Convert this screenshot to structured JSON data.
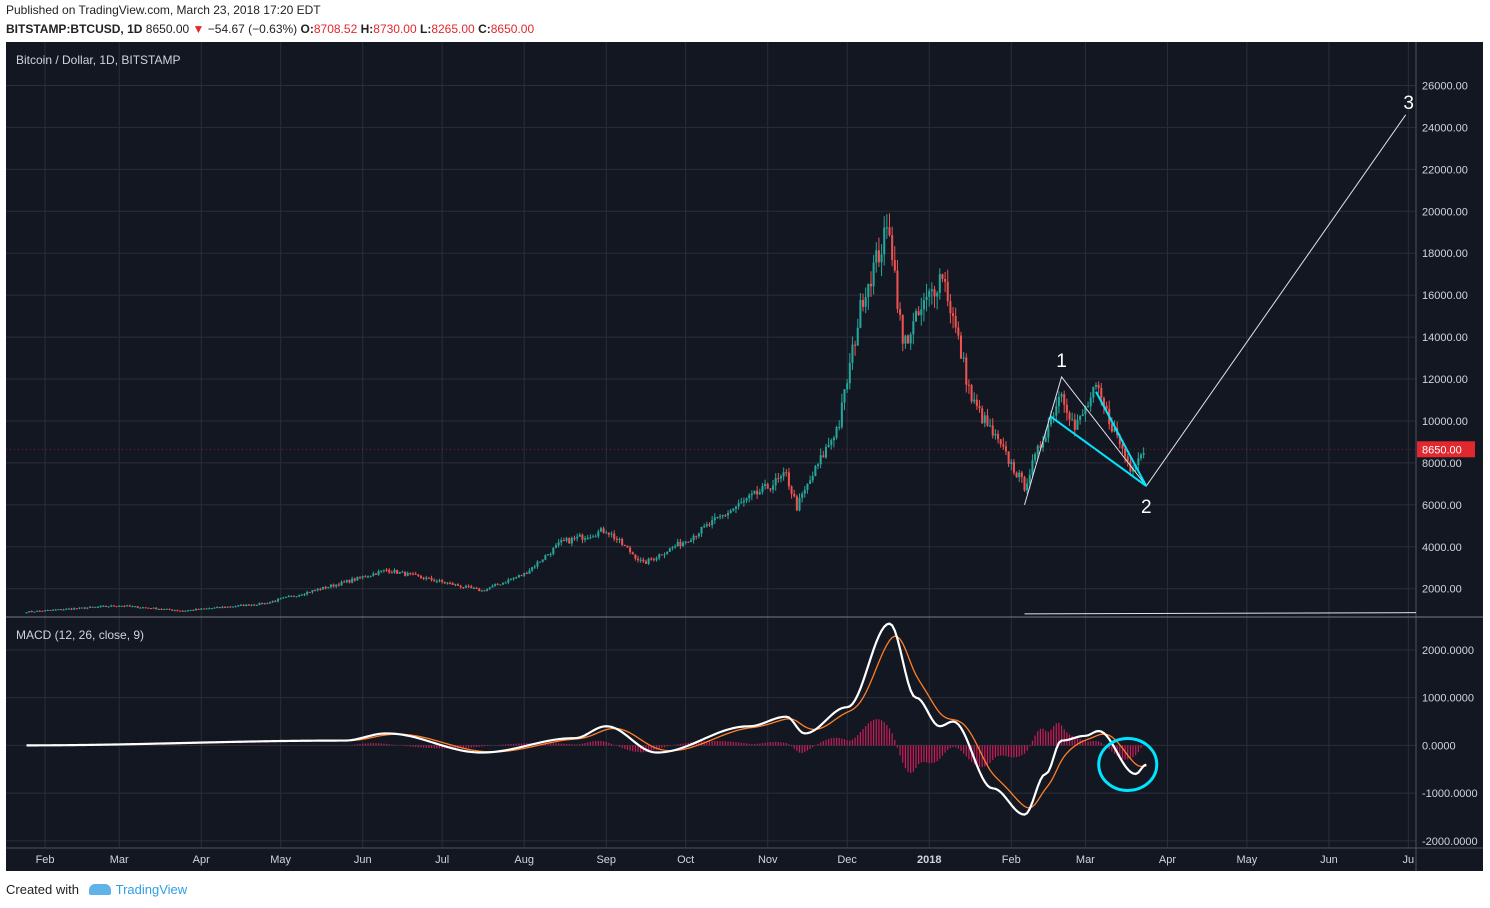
{
  "header": {
    "published": "Published on TradingView.com, March 23, 2018 17:20 EDT",
    "symbol": "BITSTAMP:BTCUSD, 1D",
    "last": "8650.00",
    "change_arrow": "▼",
    "change": "−54.67 (−0.63%)",
    "o_label": "O:",
    "o": "8708.52",
    "h_label": "H:",
    "h": "8730.00",
    "l_label": "L:",
    "l": "8265.00",
    "c_label": "C:",
    "c": "8650.00"
  },
  "footer": {
    "created": "Created with",
    "brand": "TradingView"
  },
  "colors": {
    "bg": "#131722",
    "grid": "#2a2e39",
    "up": "#26a69a",
    "down": "#ef5350",
    "macd": "#ffffff",
    "signal": "#ff7f27",
    "hist": "#e91e63",
    "cyan": "#00e5ff",
    "price_tag": "#e0282e"
  },
  "chart_data": {
    "type": "candlestick",
    "title": "Bitcoin / Dollar, 1D, BITSTAMP",
    "current_price_label": "8650.00",
    "x_tick_labels": [
      "Feb",
      "Mar",
      "Apr",
      "May",
      "Jun",
      "Jul",
      "Aug",
      "Sep",
      "Oct",
      "Nov",
      "Dec",
      "2018",
      "Feb",
      "Mar",
      "Apr",
      "May",
      "Jun",
      "Ju"
    ],
    "price_axis": {
      "ylim": [
        700,
        27500
      ],
      "ticks": [
        "26000.00",
        "24000.00",
        "22000.00",
        "20000.00",
        "18000.00",
        "16000.00",
        "14000.00",
        "12000.00",
        "10000.00",
        "8000.00",
        "6000.00",
        "4000.00",
        "2000.00"
      ]
    },
    "price_path_key_points": [
      [
        "2017-01-25",
        900
      ],
      [
        "2017-03-01",
        1200
      ],
      [
        "2017-03-25",
        950
      ],
      [
        "2017-04-25",
        1300
      ],
      [
        "2017-05-25",
        2300
      ],
      [
        "2017-06-10",
        2900
      ],
      [
        "2017-07-16",
        1900
      ],
      [
        "2017-08-01",
        2700
      ],
      [
        "2017-08-15",
        4200
      ],
      [
        "2017-09-01",
        4800
      ],
      [
        "2017-09-15",
        3200
      ],
      [
        "2017-10-01",
        4300
      ],
      [
        "2017-10-20",
        5900
      ],
      [
        "2017-11-08",
        7400
      ],
      [
        "2017-11-12",
        5900
      ],
      [
        "2017-11-28",
        9900
      ],
      [
        "2017-12-07",
        16000
      ],
      [
        "2017-12-17",
        19300
      ],
      [
        "2017-12-22",
        13600
      ],
      [
        "2018-01-06",
        17100
      ],
      [
        "2018-01-17",
        11000
      ],
      [
        "2018-02-06",
        6900
      ],
      [
        "2018-02-20",
        11500
      ],
      [
        "2018-02-25",
        9600
      ],
      [
        "2018-03-05",
        11500
      ],
      [
        "2018-03-18",
        7800
      ],
      [
        "2018-03-23",
        8650
      ]
    ],
    "annotations": {
      "wave_labels": [
        "1",
        "2",
        "3"
      ],
      "wave_points": [
        [
          "2018-02-06",
          6000
        ],
        [
          "2018-02-20",
          12100
        ],
        [
          "2018-03-24",
          6900
        ],
        [
          "2018-06-30",
          24600
        ]
      ],
      "channel": {
        "upper": [
          [
            "2018-03-05",
            11400
          ],
          [
            "2018-03-24",
            6900
          ]
        ],
        "lower": [
          [
            "2018-02-16",
            10200
          ],
          [
            "2018-03-24",
            6900
          ]
        ]
      }
    },
    "macd": {
      "title": "MACD (12, 26, close, 9)",
      "ylim": [
        -2150,
        2500
      ],
      "ticks": [
        "2000.0000",
        "1000.0000",
        "0.0000",
        "-1000.0000",
        "-2000.0000"
      ],
      "macd_key_points": [
        [
          "2017-01-25",
          0
        ],
        [
          "2017-05-25",
          100
        ],
        [
          "2017-06-10",
          250
        ],
        [
          "2017-07-16",
          -150
        ],
        [
          "2017-08-20",
          150
        ],
        [
          "2017-09-01",
          400
        ],
        [
          "2017-09-20",
          -150
        ],
        [
          "2017-10-25",
          400
        ],
        [
          "2017-11-08",
          600
        ],
        [
          "2017-11-15",
          250
        ],
        [
          "2017-12-01",
          800
        ],
        [
          "2017-12-17",
          2550
        ],
        [
          "2017-12-27",
          1000
        ],
        [
          "2018-01-05",
          400
        ],
        [
          "2018-01-10",
          500
        ],
        [
          "2018-01-25",
          -900
        ],
        [
          "2018-02-06",
          -1450
        ],
        [
          "2018-02-14",
          -600
        ],
        [
          "2018-02-20",
          100
        ],
        [
          "2018-03-01",
          200
        ],
        [
          "2018-03-06",
          300
        ],
        [
          "2018-03-20",
          -600
        ],
        [
          "2018-03-24",
          -400
        ]
      ]
    }
  }
}
